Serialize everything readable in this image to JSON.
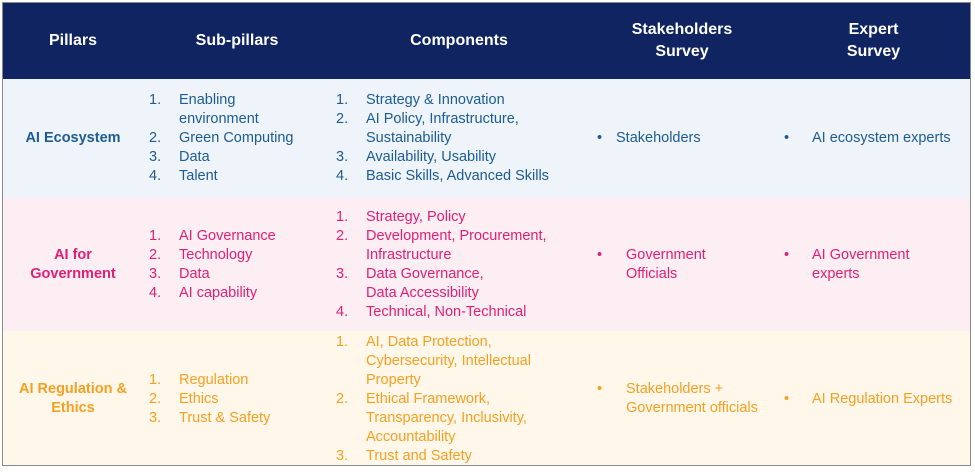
{
  "headers": {
    "pillars": "Pillars",
    "subpillars": "Sub-pillars",
    "components": "Components",
    "stakeholders_line1": "Stakeholders",
    "stakeholders_line2": "Survey",
    "expert_line1": "Expert",
    "expert_line2": "Survey"
  },
  "rows": [
    {
      "pillar_lines": [
        "AI Ecosystem"
      ],
      "subpillars": [
        {
          "num": "1.",
          "text": "Enabling environment"
        },
        {
          "num": "2.",
          "text": "Green Computing"
        },
        {
          "num": "3.",
          "text": "Data"
        },
        {
          "num": "4.",
          "text": "Talent"
        }
      ],
      "components": [
        {
          "num": "1.",
          "text": "Strategy & Innovation"
        },
        {
          "num": "2.",
          "text": "AI Policy, Infrastructure, Sustainability"
        },
        {
          "num": "3.",
          "text": "Availability, Usability"
        },
        {
          "num": "4.",
          "text": "Basic Skills, Advanced Skills"
        }
      ],
      "stakeholders": "Stakeholders",
      "experts": "AI ecosystem experts"
    },
    {
      "pillar_lines": [
        "AI for",
        "Government"
      ],
      "subpillars": [
        {
          "num": "1.",
          "text": "AI Governance"
        },
        {
          "num": "2.",
          "text": "Technology"
        },
        {
          "num": "3.",
          "text": "Data"
        },
        {
          "num": "4.",
          "text": "AI capability"
        }
      ],
      "components": [
        {
          "num": "1.",
          "text": "Strategy, Policy"
        },
        {
          "num": "2.",
          "text": "Development, Procurement, Infrastructure"
        },
        {
          "num": "3.",
          "text": "Data Governance, Data Accessibility"
        },
        {
          "num": "4.",
          "text": "Technical, Non-Technical"
        }
      ],
      "stakeholders": "Government Officials",
      "experts": "AI Government experts"
    },
    {
      "pillar_lines": [
        "AI Regulation &",
        "Ethics"
      ],
      "subpillars": [
        {
          "num": "1.",
          "text": "Regulation"
        },
        {
          "num": "2.",
          "text": "Ethics"
        },
        {
          "num": "3.",
          "text": "Trust & Safety"
        }
      ],
      "components": [
        {
          "num": "1.",
          "text": "AI, Data Protection, Cybersecurity, Intellectual Property"
        },
        {
          "num": "2.",
          "text": "Ethical Framework, Transparency, Inclusivity, Accountability"
        },
        {
          "num": "3.",
          "text": "Trust and Safety"
        }
      ],
      "stakeholders": "Stakeholders + Government officials",
      "experts": "AI Regulation Experts"
    }
  ],
  "colors": {
    "header_bg": "#0f2460",
    "ecosystem": "#1d5c95",
    "government": "#e21f73",
    "regulation": "#f6a022"
  }
}
